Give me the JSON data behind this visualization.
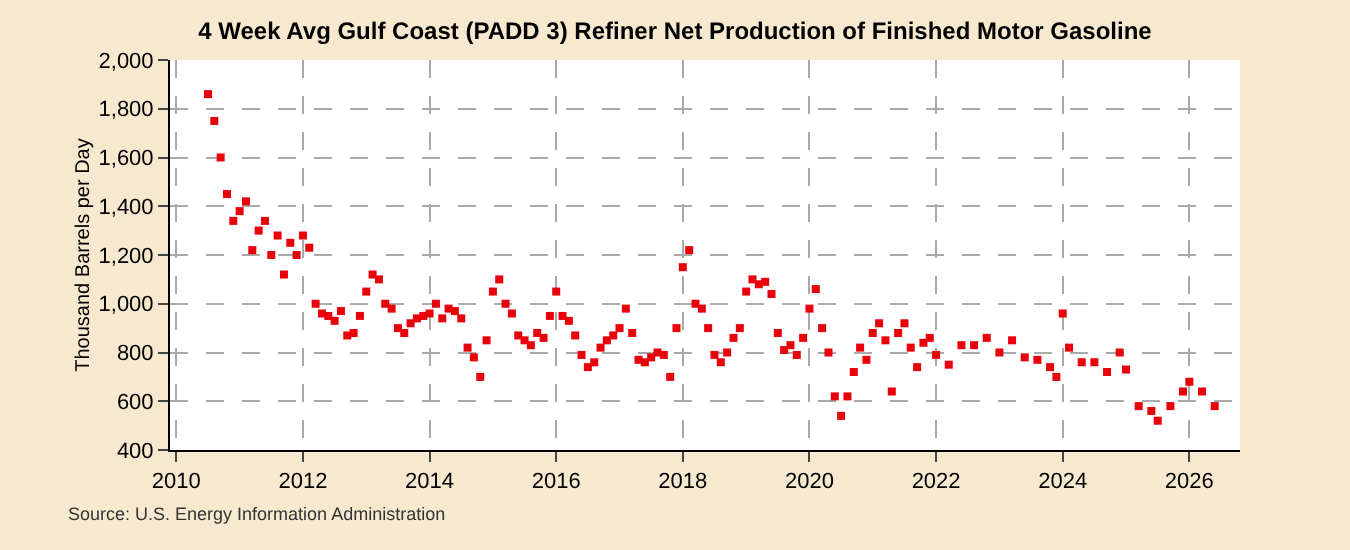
{
  "chart_data": {
    "type": "scatter",
    "title": "4 Week Avg Gulf Coast (PADD 3) Refiner Net Production of Finished Motor Gasoline",
    "ylabel": "Thousand Barrels per Day",
    "annotations": [
      "Source: U.S. Energy Information Administration"
    ],
    "x": [
      2010.5,
      2010.6,
      2010.7,
      2010.8,
      2010.9,
      2011.0,
      2011.1,
      2011.2,
      2011.3,
      2011.4,
      2011.5,
      2011.6,
      2011.7,
      2011.8,
      2011.9,
      2012.0,
      2012.1,
      2012.2,
      2012.3,
      2012.4,
      2012.5,
      2012.6,
      2012.7,
      2012.8,
      2012.9,
      2013.0,
      2013.1,
      2013.2,
      2013.3,
      2013.4,
      2013.5,
      2013.6,
      2013.7,
      2013.8,
      2013.9,
      2014.0,
      2014.1,
      2014.2,
      2014.3,
      2014.4,
      2014.5,
      2014.6,
      2014.7,
      2014.8,
      2014.9,
      2015.0,
      2015.1,
      2015.2,
      2015.3,
      2015.4,
      2015.5,
      2015.6,
      2015.7,
      2015.8,
      2015.9,
      2016.0,
      2016.1,
      2016.2,
      2016.3,
      2016.4,
      2016.5,
      2016.6,
      2016.7,
      2016.8,
      2016.9,
      2017.0,
      2017.1,
      2017.2,
      2017.3,
      2017.4,
      2017.5,
      2017.6,
      2017.7,
      2017.8,
      2017.9,
      2018.0,
      2018.1,
      2018.2,
      2018.3,
      2018.4,
      2018.5,
      2018.6,
      2018.7,
      2018.8,
      2018.9,
      2019.0,
      2019.1,
      2019.2,
      2019.3,
      2019.4,
      2019.5,
      2019.6,
      2019.7,
      2019.8,
      2019.9,
      2020.0,
      2020.1,
      2020.2,
      2020.3,
      2020.4,
      2020.5,
      2020.6,
      2020.7,
      2020.8,
      2020.9,
      2021.0,
      2021.1,
      2021.2,
      2021.3,
      2021.4,
      2021.5,
      2021.6,
      2021.7,
      2021.8,
      2021.9,
      2022.0,
      2022.2,
      2022.4,
      2022.6,
      2022.8,
      2023.0,
      2023.2,
      2023.4,
      2023.6,
      2023.8,
      2023.9,
      2024.0,
      2024.1,
      2024.3,
      2024.5,
      2024.7,
      2024.9,
      2025.0,
      2025.2,
      2025.4,
      2025.5,
      2025.7,
      2025.9,
      2026.0,
      2026.2,
      2026.4
    ],
    "series": [
      {
        "color": "#e8000b",
        "values": [
          1860,
          1750,
          1600,
          1450,
          1340,
          1380,
          1420,
          1220,
          1300,
          1340,
          1200,
          1280,
          1120,
          1250,
          1200,
          1280,
          1230,
          1000,
          960,
          950,
          930,
          970,
          870,
          880,
          950,
          1050,
          1120,
          1100,
          1000,
          980,
          900,
          880,
          920,
          940,
          950,
          960,
          1000,
          940,
          980,
          970,
          940,
          820,
          780,
          700,
          850,
          1050,
          1100,
          1000,
          960,
          870,
          850,
          830,
          880,
          860,
          950,
          1050,
          950,
          930,
          870,
          790,
          740,
          760,
          820,
          850,
          870,
          900,
          980,
          880,
          770,
          760,
          780,
          800,
          790,
          700,
          900,
          1150,
          1220,
          1000,
          980,
          900,
          790,
          760,
          800,
          860,
          900,
          1050,
          1100,
          1080,
          1090,
          1040,
          880,
          810,
          830,
          790,
          860,
          980,
          1060,
          900,
          800,
          620,
          540,
          620,
          720,
          820,
          770,
          880,
          920,
          850,
          640,
          880,
          920,
          820,
          740,
          840,
          860,
          790,
          750,
          830,
          830,
          860,
          800,
          850,
          780,
          770,
          740,
          700,
          960,
          820,
          760,
          760,
          720,
          800,
          730,
          580,
          560,
          520,
          580,
          640,
          680,
          640,
          580
        ]
      }
    ],
    "xlim": [
      2009.9,
      2026.8
    ],
    "xticks": [
      2010,
      2012,
      2014,
      2016,
      2018,
      2020,
      2022,
      2024,
      2026
    ],
    "ylim": [
      400,
      2000
    ],
    "yticks": [
      400,
      600,
      800,
      {
        "value": 1000,
        "label": "1,000"
      },
      {
        "value": 1200,
        "label": "1,200"
      },
      {
        "value": 1400,
        "label": "1,400"
      },
      {
        "value": 1600,
        "label": "1,600"
      },
      {
        "value": 1800,
        "label": "1,800"
      },
      {
        "value": 2000,
        "label": "2,000"
      }
    ],
    "grid": true,
    "marker": "square"
  }
}
